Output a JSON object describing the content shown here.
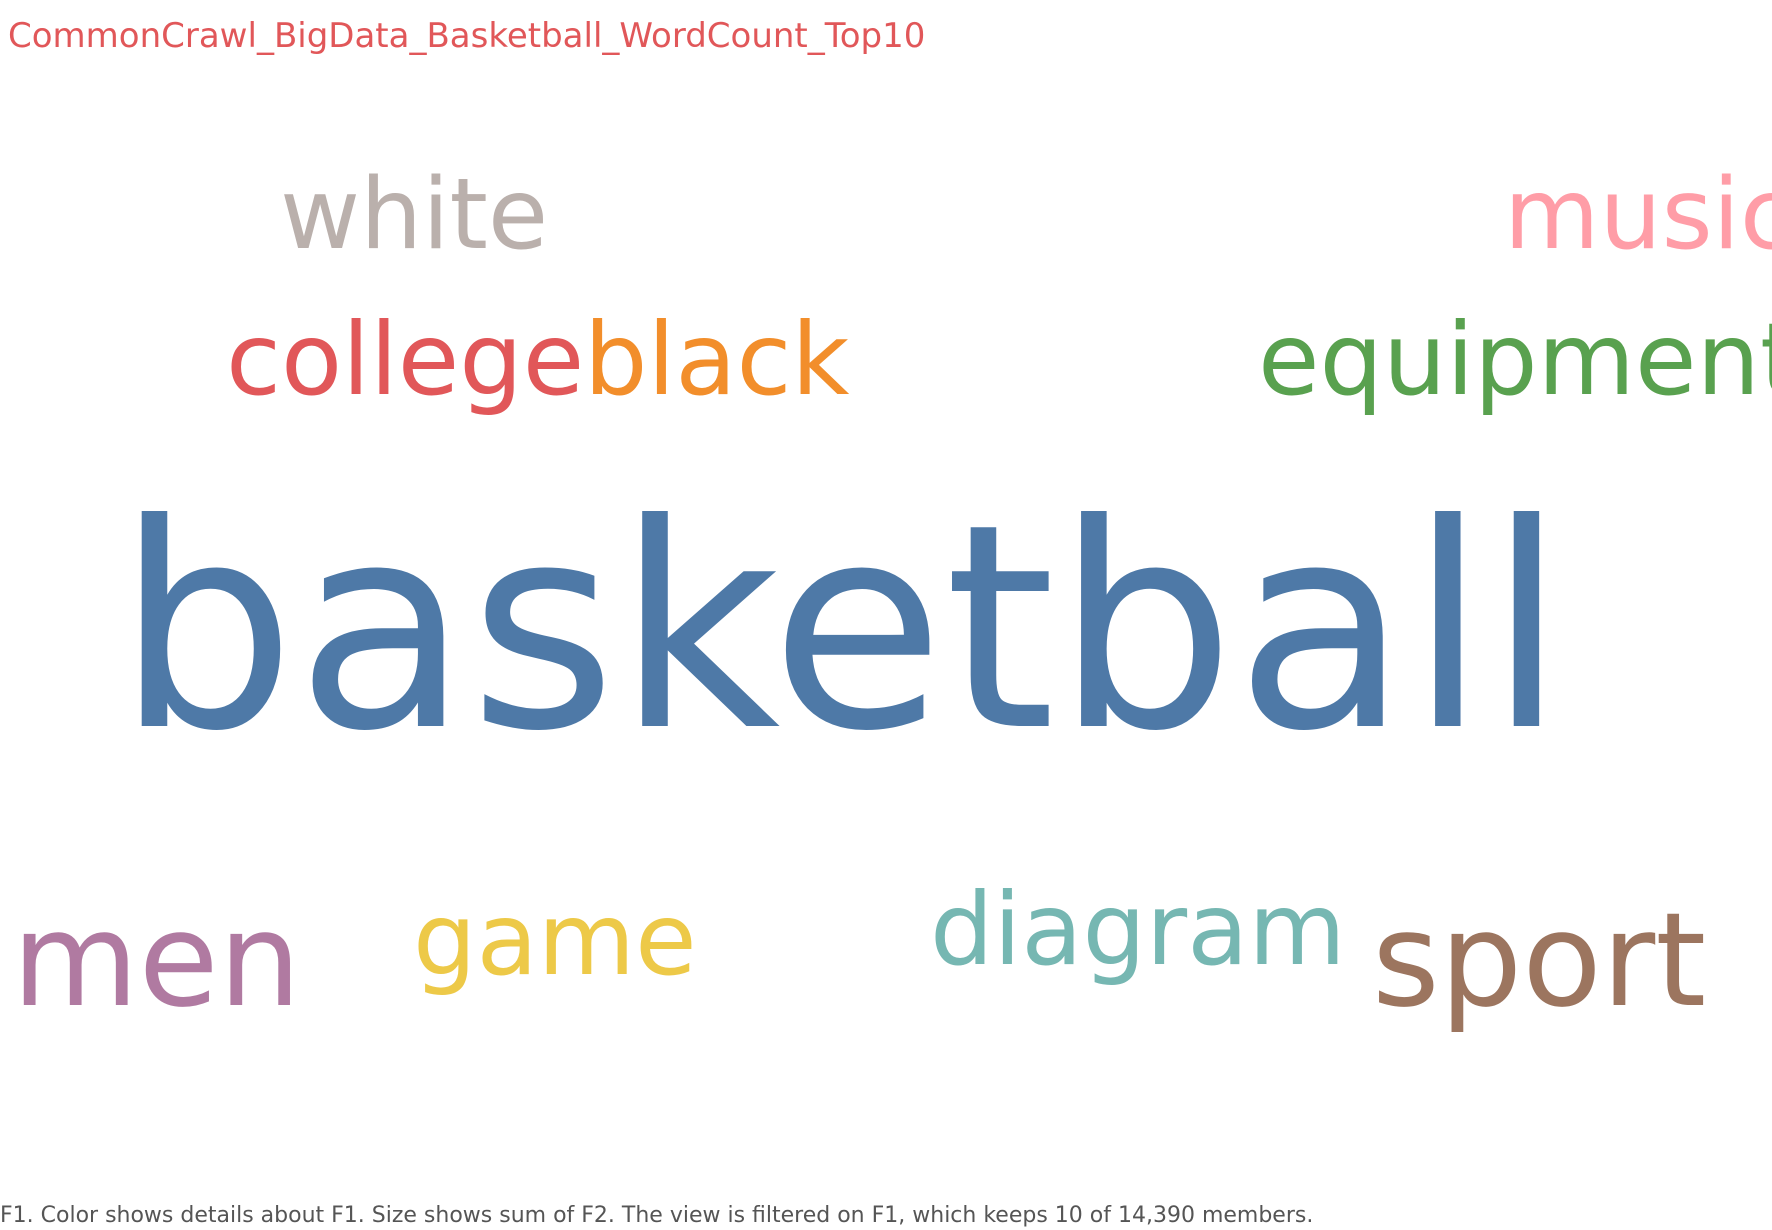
{
  "sheet": {
    "title": "CommonCrawl_BigData_Basketball_WordCount_Top10",
    "title_color": "#e15759",
    "caption": "F1.  Color shows details about F1.  Size shows sum of F2. The view is filtered on F1, which keeps 10 of 14,390 members.",
    "caption_color": "#555555"
  },
  "chart_data": {
    "type": "wordcloud",
    "title": "CommonCrawl_BigData_Basketball_WordCount_Top10",
    "words": [
      {
        "text": "basketball",
        "color": "#4e79a7"
      },
      {
        "text": "white",
        "color": "#bab0ac"
      },
      {
        "text": "music",
        "color": "#ff9da7"
      },
      {
        "text": "college",
        "color": "#e15759"
      },
      {
        "text": "black",
        "color": "#f28e2b"
      },
      {
        "text": "equipment",
        "color": "#59a14f"
      },
      {
        "text": "men",
        "color": "#b07aa1"
      },
      {
        "text": "game",
        "color": "#edc948"
      },
      {
        "text": "diagram",
        "color": "#76b7b2"
      },
      {
        "text": "sport",
        "color": "#9c755f"
      }
    ]
  }
}
